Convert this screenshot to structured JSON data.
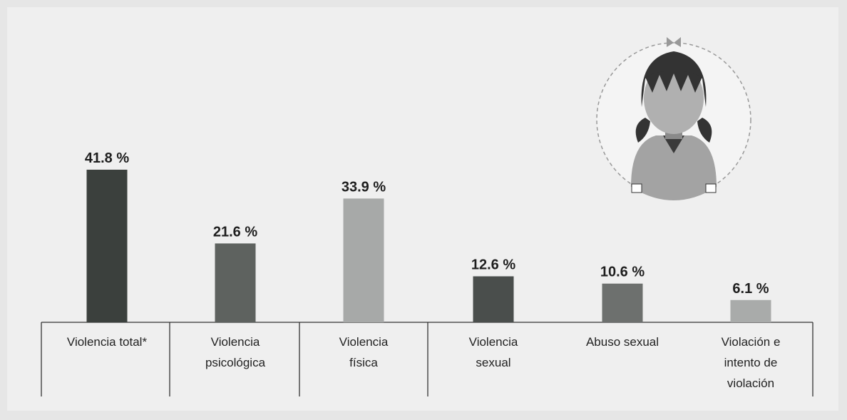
{
  "chart_data": {
    "type": "bar",
    "categories": [
      "Violencia total*",
      "Violencia psicológica",
      "Violencia física",
      "Violencia sexual",
      "Abuso sexual",
      "Violación e intento de violación"
    ],
    "values": [
      41.8,
      21.6,
      33.9,
      12.6,
      10.6,
      6.1
    ],
    "value_labels": [
      "41.8 %",
      "21.6 %",
      "33.9 %",
      "12.6 %",
      "10.6 %",
      "6.1 %"
    ],
    "colors": [
      "#3b403d",
      "#5e625f",
      "#a7a9a8",
      "#4a4e4c",
      "#6d706e",
      "#a9abaa"
    ]
  }
}
